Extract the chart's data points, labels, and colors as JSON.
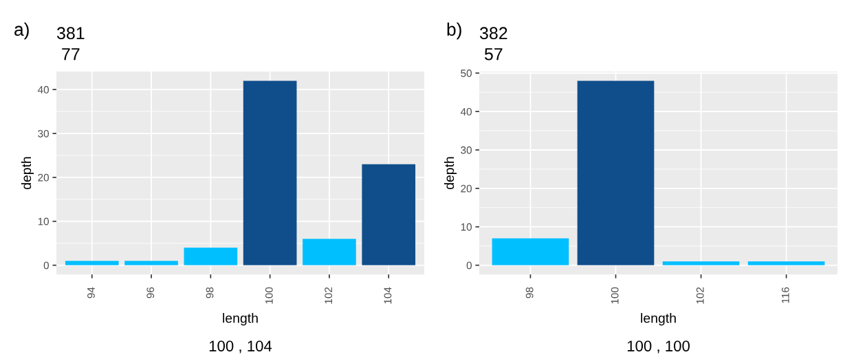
{
  "chart_data": [
    {
      "type": "bar",
      "title": "381\n77",
      "xlabel": "length",
      "ylabel": "depth",
      "categories": [
        "94",
        "96",
        "98",
        "100",
        "102",
        "104"
      ],
      "values": [
        1,
        1,
        4,
        42,
        6,
        23
      ],
      "colors": [
        "#00bfff",
        "#00bfff",
        "#00bfff",
        "#104e8b",
        "#00bfff",
        "#104e8b"
      ],
      "ylim": [
        -2.1,
        44.1
      ],
      "yticks": [
        0,
        10,
        20,
        30,
        40
      ],
      "grid": true,
      "annotations": [
        "a)",
        "100 , 104"
      ]
    },
    {
      "type": "bar",
      "title": "382\n57",
      "xlabel": "length",
      "ylabel": "depth",
      "categories": [
        "98",
        "100",
        "102",
        "116"
      ],
      "values": [
        7,
        48,
        1,
        1
      ],
      "colors": [
        "#00bfff",
        "#104e8b",
        "#00bfff",
        "#00bfff"
      ],
      "ylim": [
        -2.4,
        50.4
      ],
      "yticks": [
        0,
        10,
        20,
        30,
        40,
        50
      ],
      "grid": true,
      "annotations": [
        "b)",
        "100 , 100"
      ]
    }
  ]
}
